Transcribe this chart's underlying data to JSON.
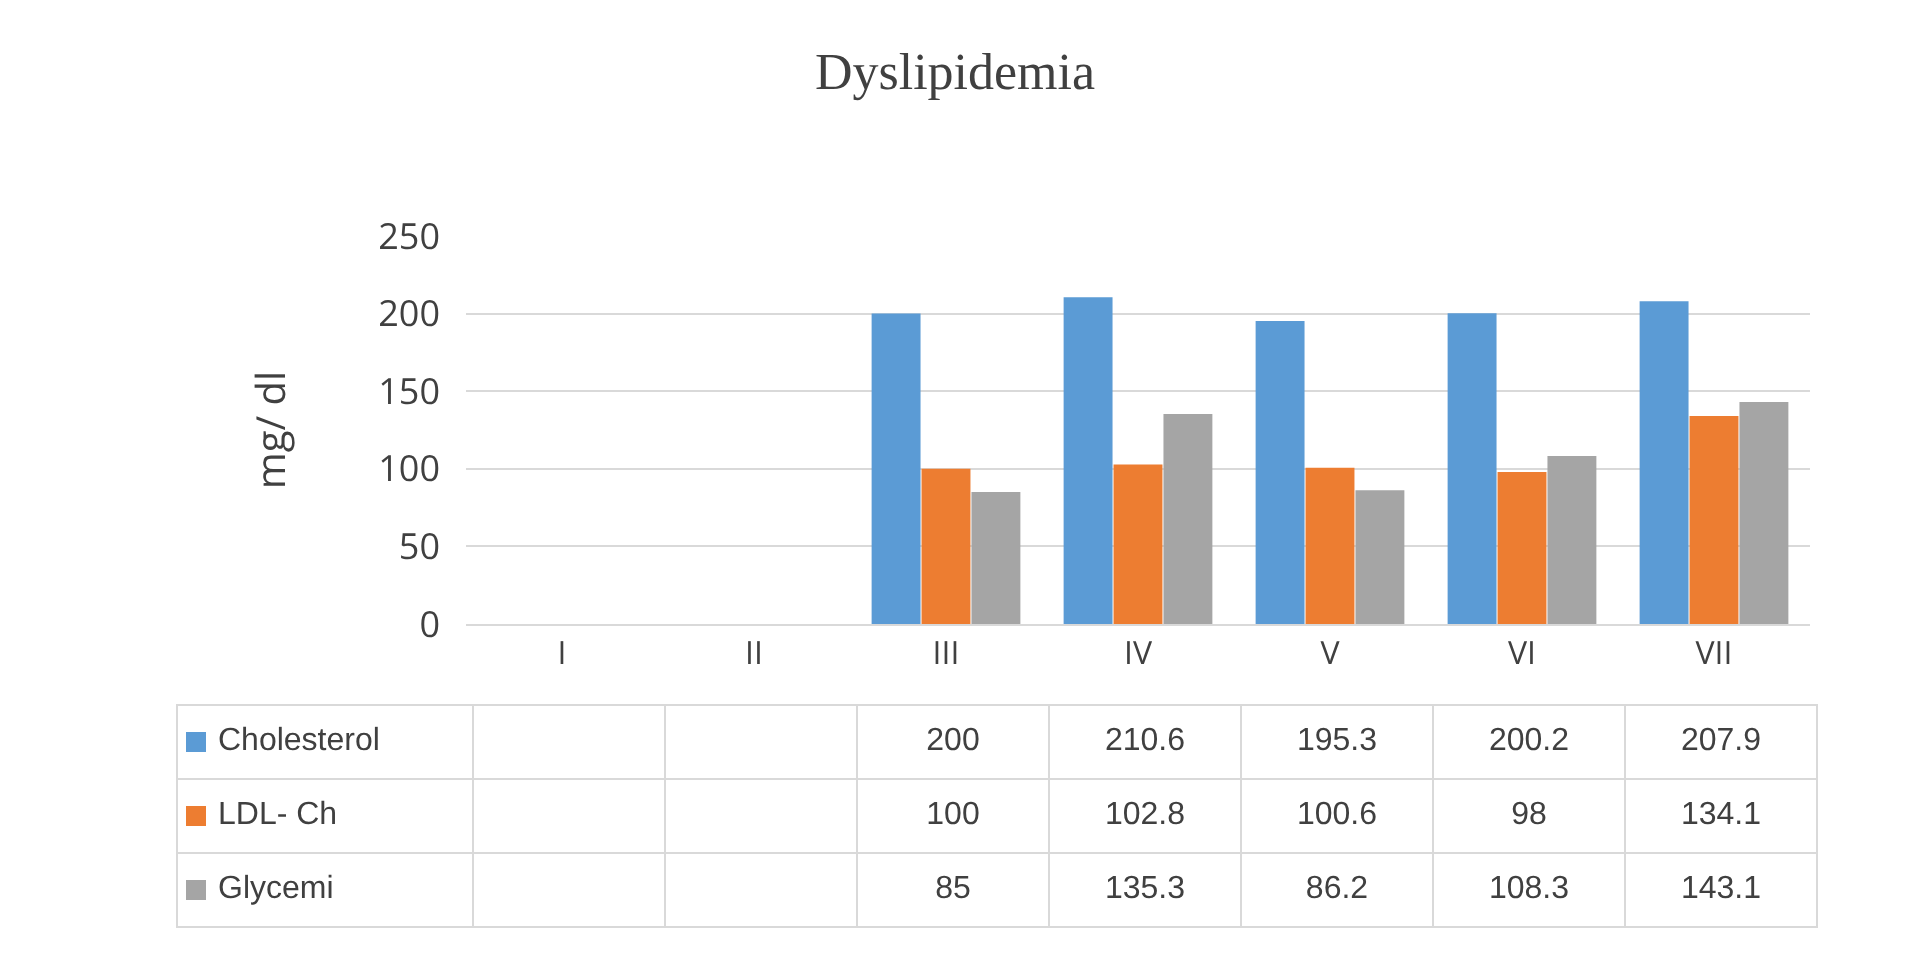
{
  "chart_data": {
    "type": "bar",
    "title": "Dyslipidemia",
    "ylabel": "mg/ dl",
    "categories": [
      "I",
      "II",
      "III",
      "IV",
      "V",
      "VI",
      "VII"
    ],
    "series": [
      {
        "name": "Cholesterol",
        "color": "#5b9bd5",
        "values": [
          null,
          null,
          200,
          210.6,
          195.3,
          200.2,
          207.9
        ]
      },
      {
        "name": "LDL- Ch",
        "color": "#ed7d31",
        "values": [
          null,
          null,
          100,
          102.8,
          100.6,
          98,
          134.1
        ]
      },
      {
        "name": "Glycemi",
        "color": "#a5a5a5",
        "values": [
          null,
          null,
          85,
          135.3,
          86.2,
          108.3,
          143.1
        ]
      }
    ],
    "ylim": [
      0,
      250
    ],
    "yticks": [
      0,
      50,
      100,
      150,
      200,
      250
    ],
    "grid": "y",
    "legend": "bottom",
    "data_labels": true
  }
}
